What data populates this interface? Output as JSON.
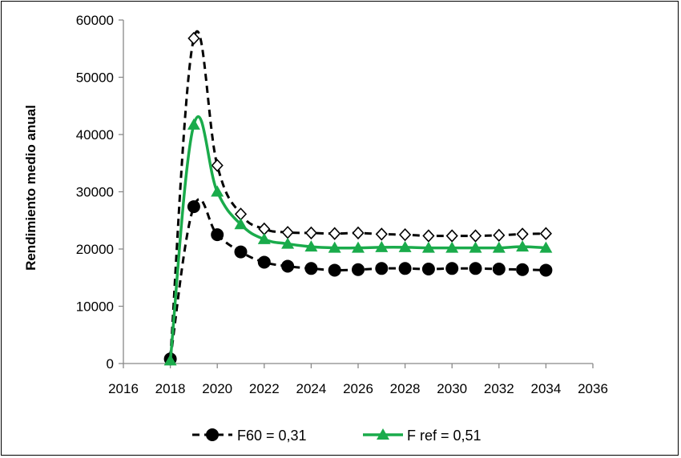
{
  "chart_data": {
    "type": "line",
    "title": "",
    "xlabel": "",
    "ylabel": "Rendimiento medio anual",
    "xlim": [
      2016,
      2036
    ],
    "ylim": [
      0,
      60000
    ],
    "x_ticks": [
      2016,
      2018,
      2020,
      2022,
      2024,
      2026,
      2028,
      2030,
      2032,
      2034,
      2036
    ],
    "y_ticks": [
      0,
      10000,
      20000,
      30000,
      40000,
      50000,
      60000
    ],
    "x_tick_labels": [
      "2016",
      "2018",
      "2020",
      "2022",
      "2024",
      "2026",
      "2028",
      "2030",
      "2032",
      "2034",
      "2036"
    ],
    "y_tick_labels": [
      "0",
      "10000",
      "20000",
      "30000",
      "40000",
      "50000",
      "60000"
    ],
    "grid": false,
    "legend_position": "bottom",
    "x": [
      2018,
      2019,
      2020,
      2021,
      2022,
      2023,
      2024,
      2025,
      2026,
      2027,
      2028,
      2029,
      2030,
      2031,
      2032,
      2033,
      2034
    ],
    "series": [
      {
        "name": "F60 = 0,31",
        "color": "#000000",
        "line_style": "dashed",
        "marker": "circle-filled",
        "values": [
          800,
          27400,
          22500,
          19500,
          17700,
          17000,
          16600,
          16300,
          16400,
          16600,
          16600,
          16500,
          16600,
          16600,
          16500,
          16400,
          16300
        ]
      },
      {
        "name": "F ref = 0,51",
        "color": "#1aab4b",
        "line_style": "solid",
        "marker": "triangle-filled",
        "values": [
          500,
          41700,
          30000,
          24300,
          21700,
          20900,
          20400,
          20200,
          20200,
          20300,
          20300,
          20200,
          20200,
          20200,
          20200,
          20400,
          20200
        ]
      },
      {
        "name": "",
        "color": "#000000",
        "line_style": "dashed",
        "marker": "diamond-open",
        "values": [
          1000,
          56800,
          34600,
          26100,
          23500,
          22900,
          22800,
          22700,
          22800,
          22600,
          22500,
          22300,
          22300,
          22300,
          22400,
          22600,
          22700
        ]
      }
    ],
    "legend": [
      {
        "label": "F60 = 0,31",
        "series": 0
      },
      {
        "label": "F ref = 0,51",
        "series": 1
      }
    ]
  }
}
